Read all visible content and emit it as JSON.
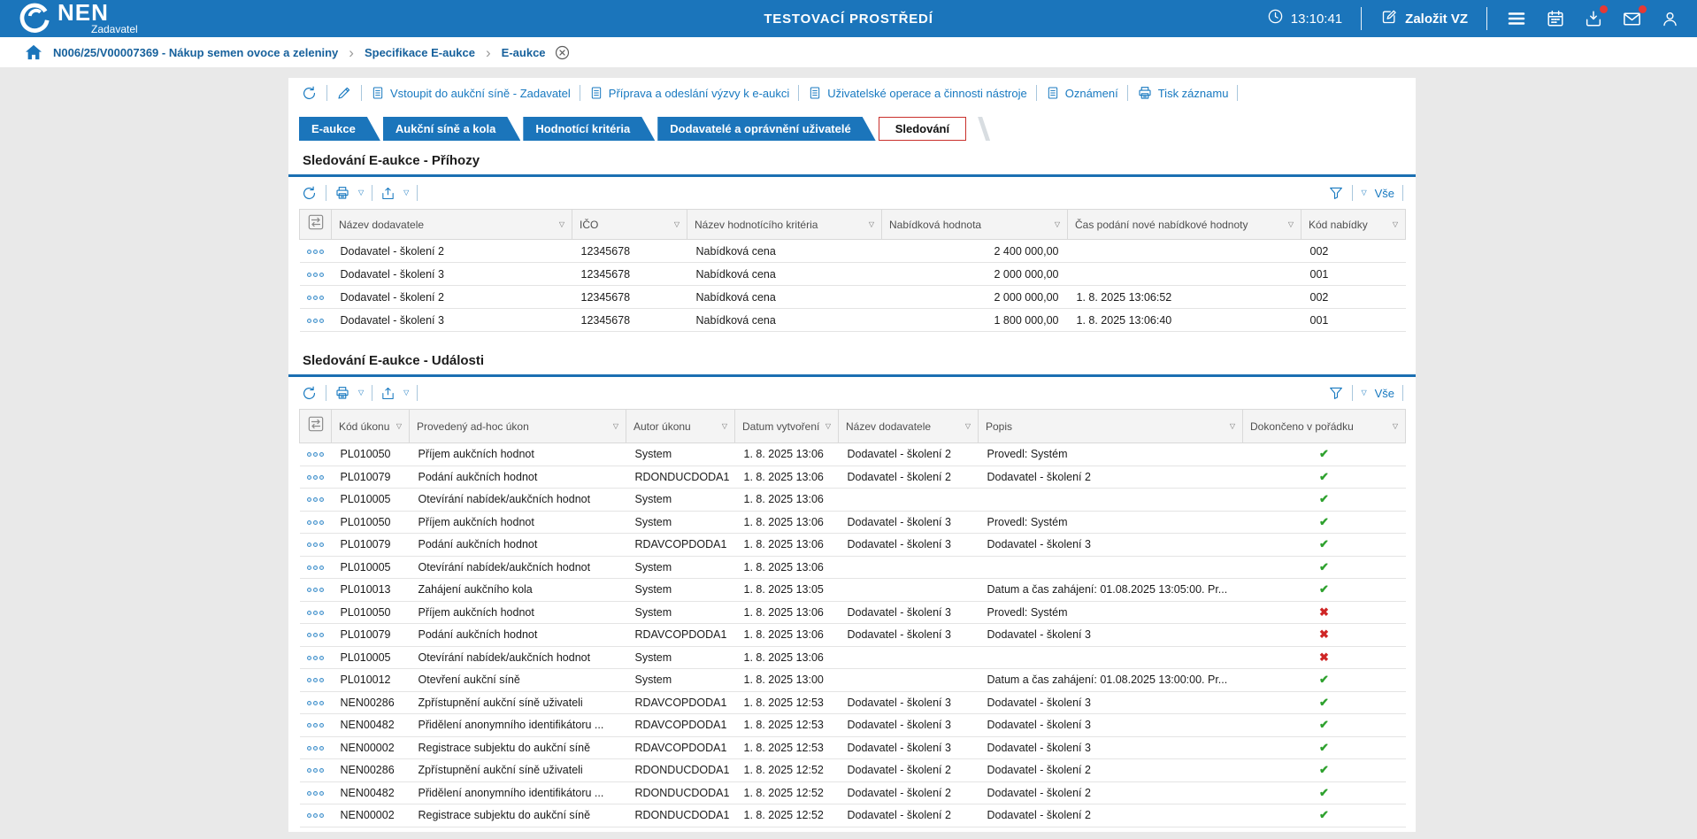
{
  "header": {
    "logo": {
      "title": "NEN",
      "subtitle": "Zadavatel"
    },
    "env_title": "TESTOVACÍ PROSTŘEDÍ",
    "time": "13:10:41",
    "create_label": "Založit VZ",
    "accent_color": "#1b75bb",
    "badge_color": "#e53935",
    "icons": [
      "clock-icon",
      "edit-square-icon",
      "hamburger-menu-icon",
      "calendar-icon",
      "downloads-icon",
      "messages-icon",
      "user-icon"
    ]
  },
  "breadcrumb": {
    "items": [
      "N006/25/V00007369 - Nákup semen ovoce a zeleniny",
      "Specifikace E-aukce",
      "E-aukce"
    ]
  },
  "record_toolbar": {
    "icon_actions": [
      "refresh-icon",
      "pencil-icon"
    ],
    "actions": [
      {
        "icon": "document",
        "label": "Vstoupit do aukční síně - Zadavatel"
      },
      {
        "icon": "document",
        "label": "Příprava a odeslání výzvy k e-aukci"
      },
      {
        "icon": "document",
        "label": "Uživatelské operace a činnosti nástroje"
      },
      {
        "icon": "document",
        "label": "Oznámení"
      },
      {
        "icon": "printer",
        "label": "Tisk záznamu"
      }
    ]
  },
  "tabs": [
    {
      "label": "E-aukce",
      "active": false
    },
    {
      "label": "Aukční síně a kola",
      "active": false
    },
    {
      "label": "Hodnotící kritéria",
      "active": false
    },
    {
      "label": "Dodavatelé a oprávnění uživatelé",
      "active": false
    },
    {
      "label": "Sledování",
      "active": true
    }
  ],
  "sections": [
    {
      "title": "Sledování E-aukce - Příhozy",
      "toolbar": {
        "icons": [
          "refresh-icon",
          "printer-icon",
          "export-icon",
          "filter-icon"
        ],
        "all_label": "Vše"
      },
      "table": {
        "columns": [
          "Název dodavatele",
          "IČO",
          "Název hodnotícího kritéria",
          "Nabídková hodnota",
          "Čas podání nové nabídkové hodnoty",
          "Kód nabídky"
        ],
        "rows": [
          [
            "Dodavatel - školení 2",
            "12345678",
            "Nabídková cena",
            "2 400 000,00",
            "",
            "002"
          ],
          [
            "Dodavatel - školení 3",
            "12345678",
            "Nabídková cena",
            "2 000 000,00",
            "",
            "001"
          ],
          [
            "Dodavatel - školení 2",
            "12345678",
            "Nabídková cena",
            "2 000 000,00",
            "1. 8. 2025 13:06:52",
            "002"
          ],
          [
            "Dodavatel - školení 3",
            "12345678",
            "Nabídková cena",
            "1 800 000,00",
            "1. 8. 2025 13:06:40",
            "001"
          ]
        ]
      }
    },
    {
      "title": "Sledování E-aukce - Události",
      "toolbar": {
        "icons": [
          "refresh-icon",
          "printer-icon",
          "export-icon",
          "filter-icon"
        ],
        "all_label": "Vše"
      },
      "status_colors": {
        "check": "#2ea12e",
        "cross": "#cf2626"
      },
      "table": {
        "columns": [
          "Kód úkonu",
          "Provedený ad-hoc úkon",
          "Autor úkonu",
          "Datum vytvoření",
          "Název dodavatele",
          "Popis",
          "Dokončeno v pořádku"
        ],
        "rows": [
          [
            "PL010050",
            "Příjem aukčních hodnot",
            "System",
            "1. 8. 2025 13:06",
            "Dodavatel - školení 2",
            "Provedl: Systém",
            "check"
          ],
          [
            "PL010079",
            "Podání aukčních hodnot",
            "RDONDUCDODA1",
            "1. 8. 2025 13:06",
            "Dodavatel - školení 2",
            "Dodavatel - školení 2",
            "check"
          ],
          [
            "PL010005",
            "Otevírání nabídek/aukčních hodnot",
            "System",
            "1. 8. 2025 13:06",
            "",
            "",
            "check"
          ],
          [
            "PL010050",
            "Příjem aukčních hodnot",
            "System",
            "1. 8. 2025 13:06",
            "Dodavatel - školení 3",
            "Provedl: Systém",
            "check"
          ],
          [
            "PL010079",
            "Podání aukčních hodnot",
            "RDAVCOPDODA1",
            "1. 8. 2025 13:06",
            "Dodavatel - školení 3",
            "Dodavatel - školení 3",
            "check"
          ],
          [
            "PL010005",
            "Otevírání nabídek/aukčních hodnot",
            "System",
            "1. 8. 2025 13:06",
            "",
            "",
            "check"
          ],
          [
            "PL010013",
            "Zahájení aukčního kola",
            "System",
            "1. 8. 2025 13:05",
            "",
            "Datum a čas zahájení: 01.08.2025 13:05:00. Pr...",
            "check"
          ],
          [
            "PL010050",
            "Příjem aukčních hodnot",
            "System",
            "1. 8. 2025 13:06",
            "Dodavatel - školení 3",
            "Provedl: Systém",
            "cross"
          ],
          [
            "PL010079",
            "Podání aukčních hodnot",
            "RDAVCOPDODA1",
            "1. 8. 2025 13:06",
            "Dodavatel - školení 3",
            "Dodavatel - školení 3",
            "cross"
          ],
          [
            "PL010005",
            "Otevírání nabídek/aukčních hodnot",
            "System",
            "1. 8. 2025 13:06",
            "",
            "",
            "cross"
          ],
          [
            "PL010012",
            "Otevření aukční síně",
            "System",
            "1. 8. 2025 13:00",
            "",
            "Datum a čas zahájení: 01.08.2025 13:00:00. Pr...",
            "check"
          ],
          [
            "NEN00286",
            "Zpřístupnění aukční síně uživateli",
            "RDAVCOPDODA1",
            "1. 8. 2025 12:53",
            "Dodavatel - školení 3",
            "Dodavatel - školení 3",
            "check"
          ],
          [
            "NEN00482",
            "Přidělení anonymního identifikátoru ...",
            "RDAVCOPDODA1",
            "1. 8. 2025 12:53",
            "Dodavatel - školení 3",
            "Dodavatel - školení 3",
            "check"
          ],
          [
            "NEN00002",
            "Registrace subjektu do aukční síně",
            "RDAVCOPDODA1",
            "1. 8. 2025 12:53",
            "Dodavatel - školení 3",
            "Dodavatel - školení 3",
            "check"
          ],
          [
            "NEN00286",
            "Zpřístupnění aukční síně uživateli",
            "RDONDUCDODA1",
            "1. 8. 2025 12:52",
            "Dodavatel - školení 2",
            "Dodavatel - školení 2",
            "check"
          ],
          [
            "NEN00482",
            "Přidělení anonymního identifikátoru ...",
            "RDONDUCDODA1",
            "1. 8. 2025 12:52",
            "Dodavatel - školení 2",
            "Dodavatel - školení 2",
            "check"
          ],
          [
            "NEN00002",
            "Registrace subjektu do aukční síně",
            "RDONDUCDODA1",
            "1. 8. 2025 12:52",
            "Dodavatel - školení 2",
            "Dodavatel - školení 2",
            "check"
          ]
        ]
      }
    }
  ]
}
